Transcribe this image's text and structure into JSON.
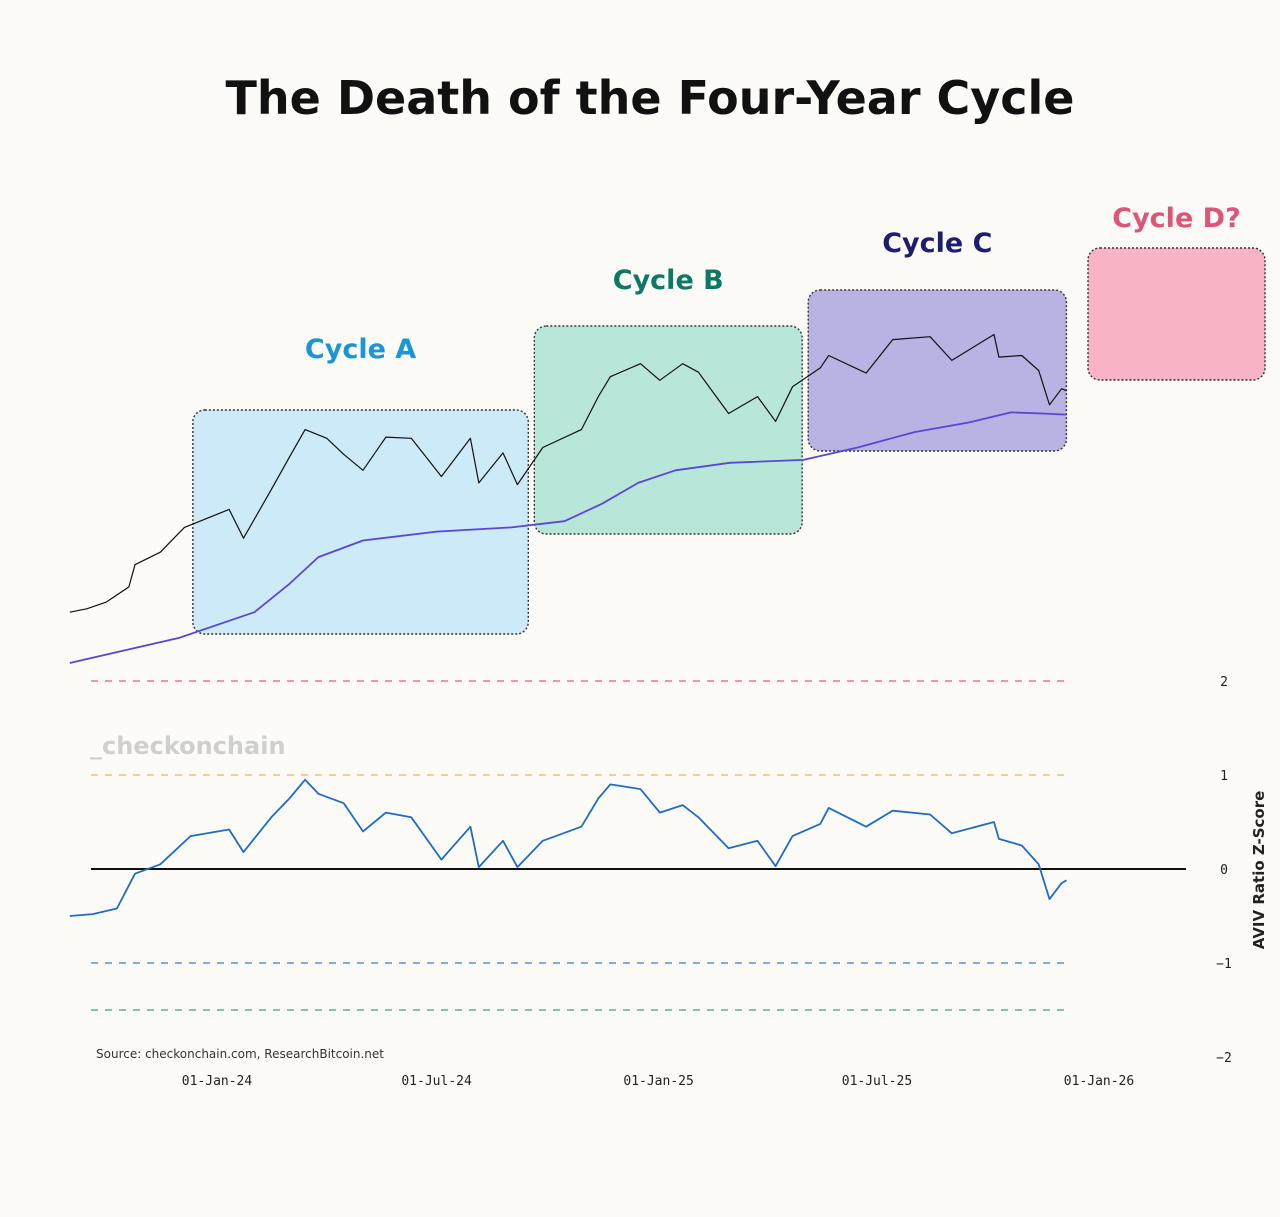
{
  "title": "The Death of the Four-Year Cycle",
  "watermark": "_checkonchain",
  "source": "Source: checkonchain.com, ResearchBitcoin.net",
  "cycles": [
    {
      "label": "Cycle A",
      "color": "#1a96d4",
      "fill": "#cdeaf8",
      "start": "2023-12-12",
      "end": "2024-09-15"
    },
    {
      "label": "Cycle B",
      "color": "#0c7a62",
      "fill": "#b8e6d8",
      "start": "2024-09-20",
      "end": "2025-04-30"
    },
    {
      "label": "Cycle C",
      "color": "#1f1e6e",
      "fill": "#b8b3e3",
      "start": "2025-05-05",
      "end": "2025-12-05"
    },
    {
      "label": "Cycle D?",
      "color": "#e05577",
      "fill": "#f8b3c4"
    }
  ],
  "chart_data": {
    "type": "line",
    "x_ticks": [
      "01-Jan-24",
      "01-Jul-24",
      "01-Jan-25",
      "01-Jul-25",
      "01-Jan-26"
    ],
    "ylabel_right": "AVIV Ratio Z-Score",
    "y_ticks": [
      "2",
      "1",
      "0",
      "−1",
      "−2"
    ],
    "ylim": [
      -2,
      2
    ],
    "reference_lines": [
      {
        "value": 2,
        "color": "#e0607a"
      },
      {
        "value": 1,
        "color": "#f0b84a"
      },
      {
        "value": 0,
        "color": "#111111"
      },
      {
        "value": -1,
        "color": "#3b7fc4"
      },
      {
        "value": -1.5,
        "color": "#3aa673"
      }
    ],
    "series": [
      {
        "role": "price",
        "color": "#111111",
        "scale": "log",
        "points": [
          [
            "2023-09-01",
            26000
          ],
          [
            "2023-09-15",
            26500
          ],
          [
            "2023-10-01",
            27500
          ],
          [
            "2023-10-20",
            30000
          ],
          [
            "2023-10-25",
            34000
          ],
          [
            "2023-11-15",
            36500
          ],
          [
            "2023-12-05",
            42000
          ],
          [
            "2024-01-11",
            46500
          ],
          [
            "2024-01-23",
            39500
          ],
          [
            "2024-02-15",
            52000
          ],
          [
            "2024-02-28",
            61000
          ],
          [
            "2024-03-14",
            73000
          ],
          [
            "2024-04-01",
            69500
          ],
          [
            "2024-04-15",
            63500
          ],
          [
            "2024-05-01",
            58000
          ],
          [
            "2024-05-20",
            70000
          ],
          [
            "2024-06-10",
            69500
          ],
          [
            "2024-07-05",
            56000
          ],
          [
            "2024-07-29",
            69500
          ],
          [
            "2024-08-05",
            54000
          ],
          [
            "2024-08-25",
            64000
          ],
          [
            "2024-09-06",
            53500
          ],
          [
            "2024-09-27",
            66000
          ],
          [
            "2024-10-29",
            73000
          ],
          [
            "2024-11-12",
            88000
          ],
          [
            "2024-11-22",
            98500
          ],
          [
            "2024-12-17",
            106000
          ],
          [
            "2025-01-02",
            96500
          ],
          [
            "2025-01-21",
            106000
          ],
          [
            "2025-02-03",
            101000
          ],
          [
            "2025-02-28",
            80000
          ],
          [
            "2025-03-24",
            88000
          ],
          [
            "2025-04-08",
            76500
          ],
          [
            "2025-04-22",
            93000
          ],
          [
            "2025-05-15",
            103500
          ],
          [
            "2025-05-22",
            111000
          ],
          [
            "2025-06-22",
            100500
          ],
          [
            "2025-07-14",
            121500
          ],
          [
            "2025-08-14",
            123500
          ],
          [
            "2025-09-01",
            108000
          ],
          [
            "2025-10-06",
            125000
          ],
          [
            "2025-10-10",
            110000
          ],
          [
            "2025-10-29",
            111000
          ],
          [
            "2025-11-12",
            102000
          ],
          [
            "2025-11-21",
            84000
          ],
          [
            "2025-12-01",
            92000
          ],
          [
            "2025-12-05",
            91000
          ]
        ]
      },
      {
        "role": "active-realized-price",
        "color": "#5847d6",
        "scale": "log",
        "points": [
          [
            "2023-09-01",
            19500
          ],
          [
            "2023-12-01",
            22500
          ],
          [
            "2024-02-01",
            26000
          ],
          [
            "2024-03-01",
            30500
          ],
          [
            "2024-03-25",
            35500
          ],
          [
            "2024-05-01",
            39000
          ],
          [
            "2024-07-01",
            41000
          ],
          [
            "2024-09-01",
            42000
          ],
          [
            "2024-10-15",
            43500
          ],
          [
            "2024-11-15",
            48000
          ],
          [
            "2024-12-15",
            54000
          ],
          [
            "2025-01-15",
            58000
          ],
          [
            "2025-03-01",
            60500
          ],
          [
            "2025-05-01",
            61500
          ],
          [
            "2025-06-15",
            66000
          ],
          [
            "2025-08-01",
            72000
          ],
          [
            "2025-09-15",
            76000
          ],
          [
            "2025-10-20",
            80500
          ],
          [
            "2025-11-15",
            80000
          ],
          [
            "2025-12-05",
            79500
          ]
        ]
      },
      {
        "role": "aviv-z-score",
        "color": "#1f6cc8",
        "points": [
          [
            "2023-09-01",
            -0.5
          ],
          [
            "2023-09-20",
            -0.48
          ],
          [
            "2023-10-10",
            -0.42
          ],
          [
            "2023-10-25",
            -0.05
          ],
          [
            "2023-11-15",
            0.05
          ],
          [
            "2023-12-10",
            0.35
          ],
          [
            "2024-01-11",
            0.42
          ],
          [
            "2024-01-23",
            0.18
          ],
          [
            "2024-02-15",
            0.55
          ],
          [
            "2024-03-01",
            0.75
          ],
          [
            "2024-03-14",
            0.95
          ],
          [
            "2024-03-25",
            0.8
          ],
          [
            "2024-04-15",
            0.7
          ],
          [
            "2024-05-01",
            0.4
          ],
          [
            "2024-05-20",
            0.6
          ],
          [
            "2024-06-10",
            0.55
          ],
          [
            "2024-07-05",
            0.1
          ],
          [
            "2024-07-29",
            0.45
          ],
          [
            "2024-08-05",
            0.02
          ],
          [
            "2024-08-25",
            0.3
          ],
          [
            "2024-09-06",
            0.02
          ],
          [
            "2024-09-27",
            0.3
          ],
          [
            "2024-10-29",
            0.45
          ],
          [
            "2024-11-12",
            0.75
          ],
          [
            "2024-11-22",
            0.9
          ],
          [
            "2024-12-17",
            0.85
          ],
          [
            "2025-01-02",
            0.6
          ],
          [
            "2025-01-21",
            0.68
          ],
          [
            "2025-02-03",
            0.55
          ],
          [
            "2025-02-28",
            0.22
          ],
          [
            "2025-03-24",
            0.3
          ],
          [
            "2025-04-08",
            0.03
          ],
          [
            "2025-04-22",
            0.35
          ],
          [
            "2025-05-15",
            0.48
          ],
          [
            "2025-05-22",
            0.65
          ],
          [
            "2025-06-22",
            0.45
          ],
          [
            "2025-07-14",
            0.62
          ],
          [
            "2025-08-14",
            0.58
          ],
          [
            "2025-09-01",
            0.38
          ],
          [
            "2025-10-06",
            0.5
          ],
          [
            "2025-10-10",
            0.32
          ],
          [
            "2025-10-29",
            0.25
          ],
          [
            "2025-11-12",
            0.05
          ],
          [
            "2025-11-21",
            -0.32
          ],
          [
            "2025-12-01",
            -0.15
          ],
          [
            "2025-12-05",
            -0.12
          ]
        ]
      }
    ]
  }
}
